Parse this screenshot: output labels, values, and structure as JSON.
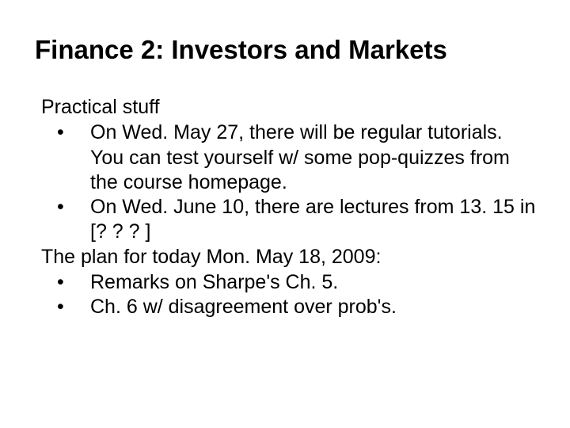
{
  "title": "Finance 2: Investors and Markets",
  "section1_header": "Practical stuff",
  "bullets": [
    "On Wed. May 27, there will be regular tutorials. You can test yourself w/ some pop-quizzes from the course homepage.",
    "On Wed. June 10, there are lectures from 13. 15 in [? ? ? ]"
  ],
  "section2_header": "The plan for today Mon. May 18, 2009:",
  "bullets2": [
    "Remarks on Sharpe's Ch. 5.",
    "Ch. 6 w/ disagreement over prob's."
  ],
  "bullet_char": "•",
  "colors": {
    "background": "#ffffff",
    "text": "#000000"
  },
  "typography": {
    "title_fontsize": 33,
    "body_fontsize": 25,
    "font_family": "Arial"
  }
}
